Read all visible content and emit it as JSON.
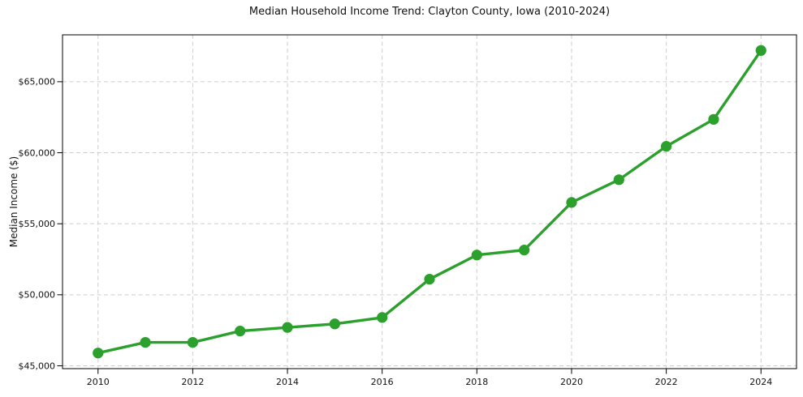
{
  "chart_data": {
    "type": "line",
    "title": "Median Household Income Trend: Clayton County, Iowa (2010-2024)",
    "xlabel": "",
    "ylabel": "Median Income ($)",
    "series": [
      {
        "name": "Median Household Income",
        "x": [
          2010,
          2011,
          2012,
          2013,
          2014,
          2015,
          2016,
          2017,
          2018,
          2019,
          2020,
          2021,
          2022,
          2023,
          2024
        ],
        "values": [
          45900,
          46650,
          46650,
          47450,
          47700,
          47950,
          48400,
          51100,
          52800,
          53150,
          56500,
          58100,
          60450,
          62350,
          67200
        ]
      }
    ],
    "line_color": "#2ca02c",
    "marker": "circle",
    "grid": true,
    "grid_style": "dashed",
    "legend_position": "none",
    "xlim": [
      2009.25,
      2024.75
    ],
    "ylim": [
      44800,
      68300
    ],
    "x_ticks": [
      2010,
      2012,
      2014,
      2016,
      2018,
      2020,
      2022,
      2024
    ],
    "x_tick_labels": [
      "2010",
      "2012",
      "2014",
      "2016",
      "2018",
      "2020",
      "2022",
      "2024"
    ],
    "y_ticks": [
      45000,
      50000,
      55000,
      60000,
      65000
    ],
    "y_tick_labels": [
      "$45,000",
      "$50,000",
      "$55,000",
      "$60,000",
      "$65,000"
    ]
  }
}
